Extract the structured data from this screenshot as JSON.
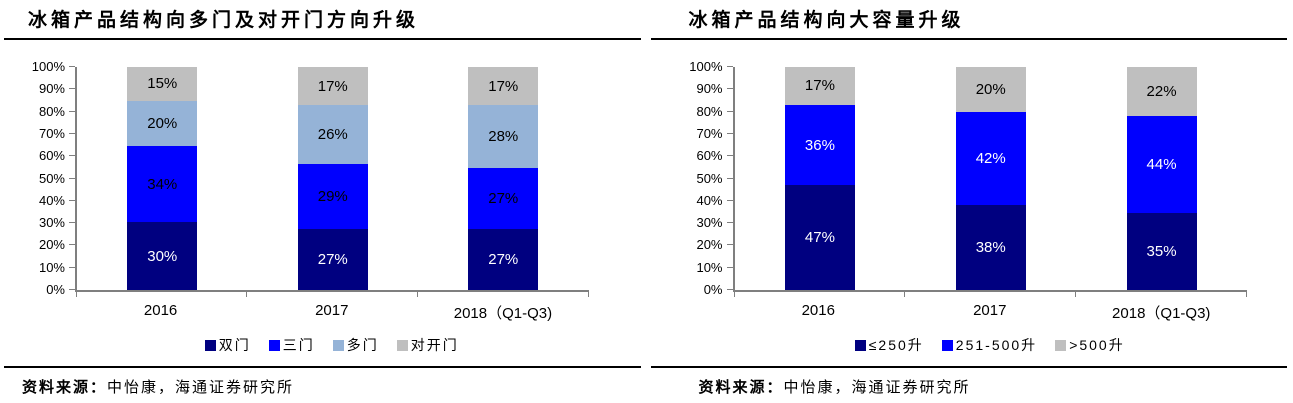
{
  "source": {
    "label": "资料来源：",
    "body": "中怡康，海通证券研究所"
  },
  "chart_data": [
    {
      "type": "bar",
      "stacked": true,
      "title": "冰箱产品结构向多门及对开门方向升级",
      "categories": [
        "2016",
        "2017",
        "2018（Q1-Q3)"
      ],
      "series": [
        {
          "name": "双门",
          "color": "#000080",
          "label_color": "#ffffff",
          "values": [
            30,
            27,
            27
          ]
        },
        {
          "name": "三门",
          "color": "#0000fe",
          "label_color": "#000000",
          "values": [
            34,
            29,
            27
          ]
        },
        {
          "name": "多门",
          "color": "#95b3d7",
          "label_color": "#000000",
          "values": [
            20,
            26,
            28
          ]
        },
        {
          "name": "对开门",
          "color": "#bfbfbf",
          "label_color": "#000000",
          "values": [
            15,
            17,
            17
          ]
        }
      ],
      "value_suffix": "%",
      "y_ticks": [
        "100%",
        "90%",
        "80%",
        "70%",
        "60%",
        "50%",
        "40%",
        "30%",
        "20%",
        "10%",
        "0%"
      ],
      "ylim": [
        0,
        100
      ],
      "grid": false,
      "legend_position": "bottom"
    },
    {
      "type": "bar",
      "stacked": true,
      "title": "冰箱产品结构向大容量升级",
      "categories": [
        "2016",
        "2017",
        "2018（Q1-Q3)"
      ],
      "series": [
        {
          "name": "≤250升",
          "color": "#000080",
          "label_color": "#ffffff",
          "values": [
            47,
            38,
            35
          ]
        },
        {
          "name": "251-500升",
          "color": "#0000fe",
          "label_color": "#ffffff",
          "values": [
            36,
            42,
            44
          ]
        },
        {
          "name": ">500升",
          "color": "#bfbfbf",
          "label_color": "#000000",
          "values": [
            17,
            20,
            22
          ]
        }
      ],
      "value_suffix": "%",
      "y_ticks": [
        "100%",
        "90%",
        "80%",
        "70%",
        "60%",
        "50%",
        "40%",
        "30%",
        "20%",
        "10%",
        "0%"
      ],
      "ylim": [
        0,
        100
      ],
      "grid": false,
      "legend_position": "bottom"
    }
  ]
}
